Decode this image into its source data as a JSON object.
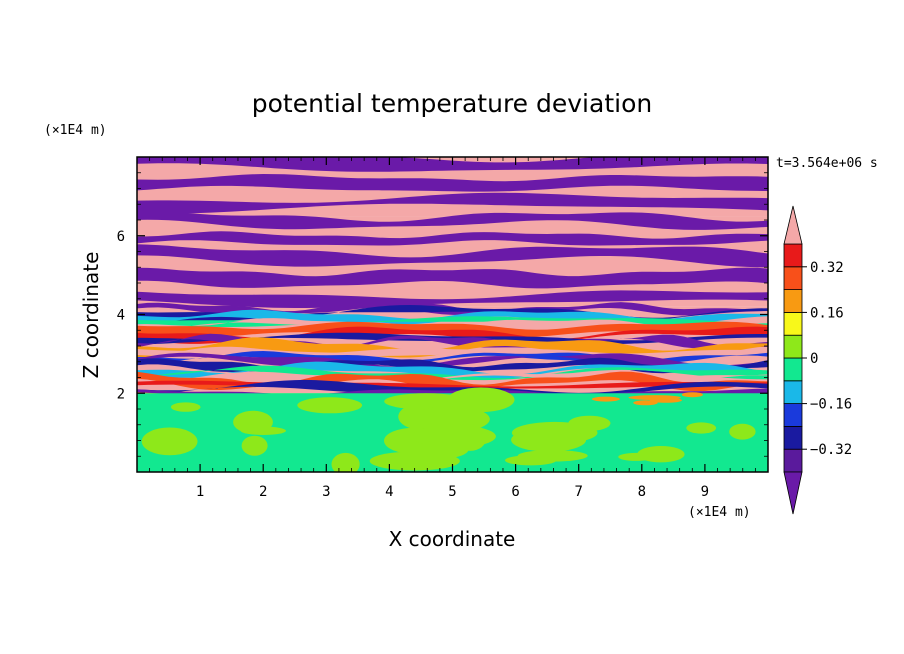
{
  "chart_data": {
    "type": "heatmap",
    "title": "potential temperature deviation",
    "xlabel": "X coordinate",
    "ylabel": "Z coordinate",
    "x_unit": "(×1E4 m)",
    "y_unit": "(×1E4 m)",
    "time_label": "t=3.564e+06 s",
    "xlim": [
      0,
      10
    ],
    "ylim": [
      0,
      8
    ],
    "x_ticks": [
      "1",
      "2",
      "3",
      "4",
      "5",
      "6",
      "7",
      "8",
      "9"
    ],
    "y_ticks": [
      "2",
      "4",
      "6"
    ],
    "colorbar": {
      "levels": [
        -0.4,
        -0.32,
        -0.24,
        -0.16,
        -0.08,
        0,
        0.08,
        0.16,
        0.24,
        0.32,
        0.4
      ],
      "tick_labels": [
        "0.32",
        "0.16",
        "0",
        "−0.16",
        "−0.32"
      ],
      "tick_values": [
        0.32,
        0.16,
        0,
        -0.16,
        -0.32
      ],
      "colors": [
        "#5a1a9c",
        "#1a1aa0",
        "#1a3adc",
        "#1ab8e8",
        "#12e890",
        "#8ee81a",
        "#f8f81a",
        "#f89a12",
        "#f8501a",
        "#e81a1a"
      ],
      "under_color": "#6a1aa8",
      "over_color": "#f4a8a8"
    },
    "bands": [
      {
        "z_range": [
          6.5,
          8.0
        ],
        "pattern": "alternating",
        "colors": [
          "#6a1aa8",
          "#f4a8a8"
        ]
      },
      {
        "z_range": [
          4.2,
          6.5
        ],
        "pattern": "alternating",
        "colors": [
          "#6a1aa8",
          "#f4a8a8"
        ]
      },
      {
        "z_range": [
          2.0,
          4.2
        ],
        "pattern": "mixed",
        "colors": [
          "#1a1aa0",
          "#1ab8e8",
          "#12e890",
          "#f8501a",
          "#e81a1a",
          "#f4a8a8"
        ]
      },
      {
        "z_range": [
          0,
          2.0
        ],
        "pattern": "mixed",
        "colors": [
          "#12e890",
          "#8ee81a"
        ]
      }
    ]
  }
}
